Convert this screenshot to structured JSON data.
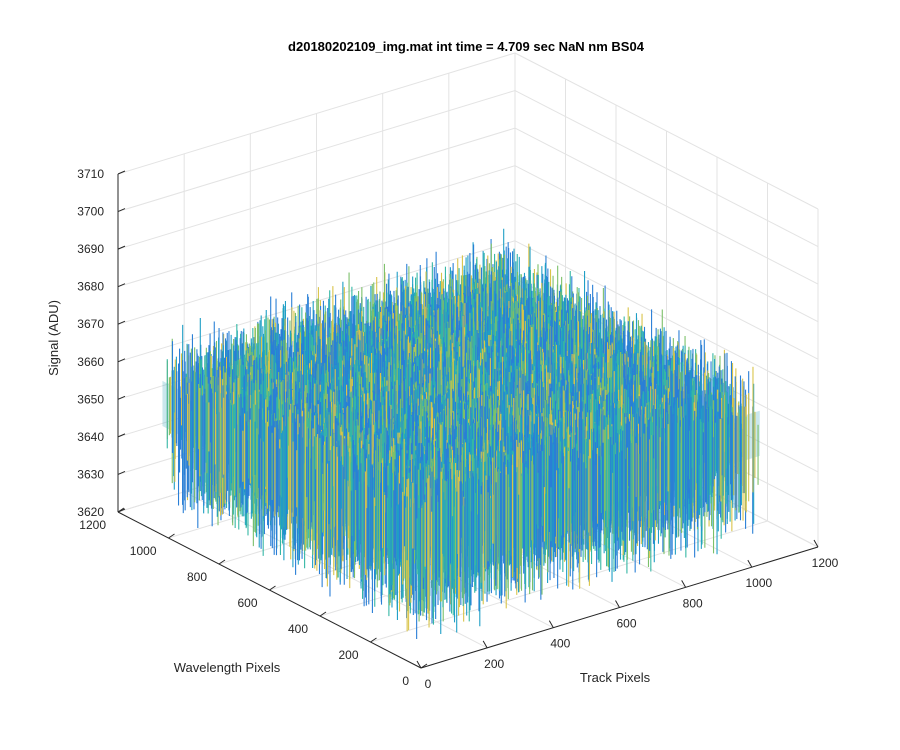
{
  "chart_data": {
    "type": "surface3d",
    "title": "d20180202109_img.mat int time = 4.709 sec  NaN nm BS04",
    "xlabel": "Track Pixels",
    "ylabel": "Wavelength Pixels",
    "zlabel": "Signal (ADU)",
    "xlim": [
      0,
      1200
    ],
    "ylim": [
      0,
      1200
    ],
    "zlim": [
      3620,
      3710
    ],
    "x_ticks": [
      "0",
      "200",
      "400",
      "600",
      "800",
      "1000",
      "1200"
    ],
    "y_ticks": [
      "0",
      "200",
      "400",
      "600",
      "800",
      "1000",
      "1200"
    ],
    "z_ticks": [
      "3620",
      "3630",
      "3640",
      "3650",
      "3660",
      "3670",
      "3680",
      "3690",
      "3700",
      "3710"
    ],
    "surface": {
      "x_extent": [
        0,
        1024
      ],
      "y_extent": [
        0,
        1024
      ],
      "z_mean": 3655,
      "z_min": 3625,
      "z_max": 3705
    },
    "grid": true,
    "colormap": [
      "#2a7fd6",
      "#1f9fc6",
      "#35b7a5",
      "#7cc06a",
      "#d9c44a"
    ]
  }
}
